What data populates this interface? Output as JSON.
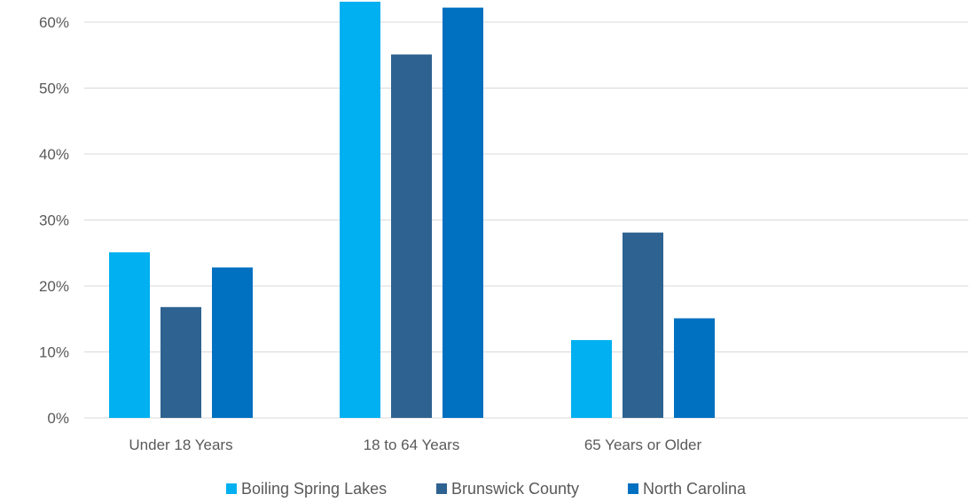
{
  "chart_data": {
    "type": "bar",
    "title": "",
    "xlabel": "",
    "ylabel": "",
    "categories": [
      "Under 18 Years",
      "18 to 64 Years",
      "65 Years or Older"
    ],
    "series": [
      {
        "name": "Boiling Spring Lakes",
        "values": [
          25.1,
          63.1,
          11.8
        ],
        "color": "#00b0f0"
      },
      {
        "name": "Brunswick County",
        "values": [
          16.8,
          55.1,
          28.1
        ],
        "color": "#2e6291"
      },
      {
        "name": "North Carolina",
        "values": [
          22.8,
          62.2,
          15.1
        ],
        "color": "#0070c0"
      }
    ],
    "ylim": [
      0,
      63
    ],
    "yticks": [
      0,
      10,
      20,
      30,
      40,
      50,
      60
    ],
    "ytick_labels": [
      "0%",
      "10%",
      "20%",
      "30%",
      "40%",
      "50%",
      "60%"
    ],
    "grid": true,
    "legend_position": "bottom"
  }
}
